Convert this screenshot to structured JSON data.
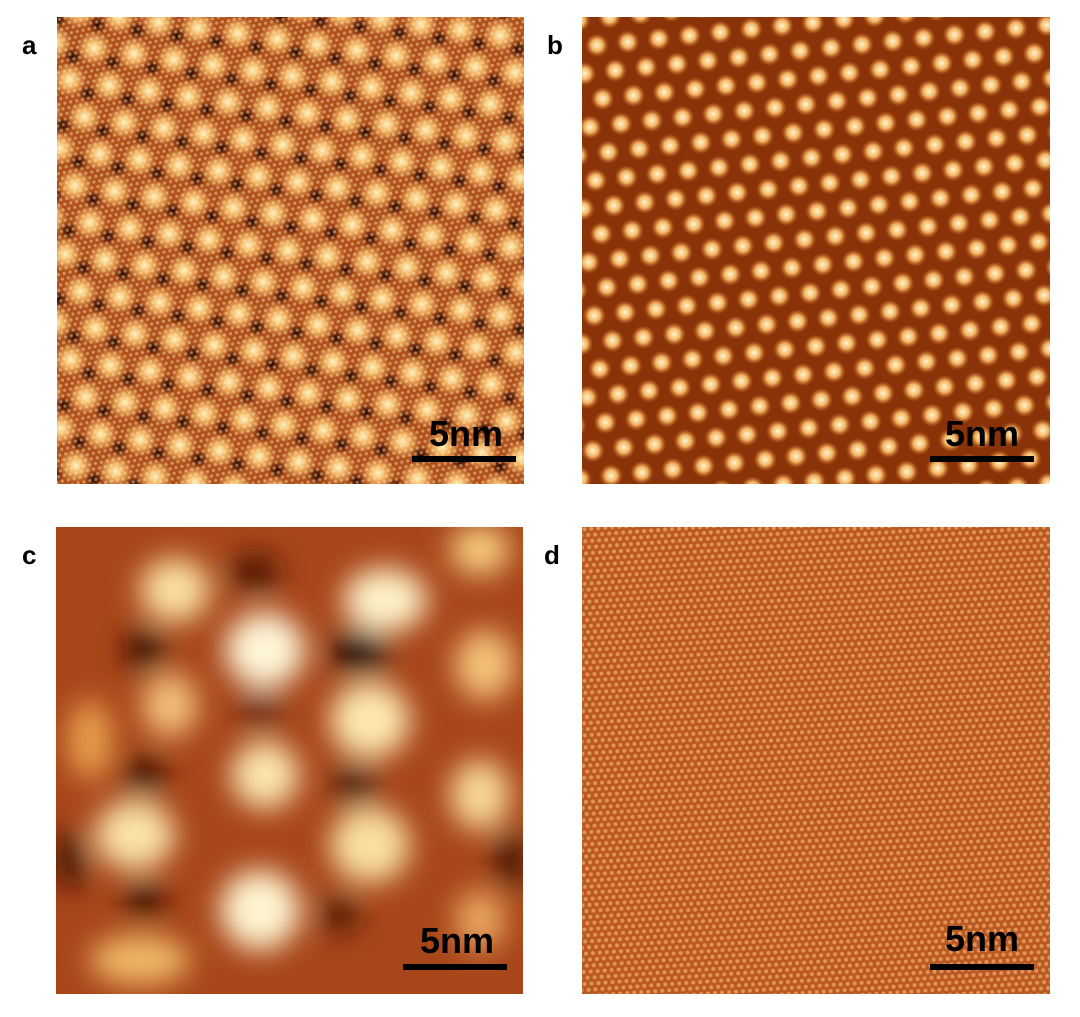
{
  "panels": [
    {
      "label": "a",
      "scale_bar": "5nm"
    },
    {
      "label": "b",
      "scale_bar": "5nm"
    },
    {
      "label": "c",
      "scale_bar": "5nm"
    },
    {
      "label": "d",
      "scale_bar": "5nm"
    }
  ]
}
